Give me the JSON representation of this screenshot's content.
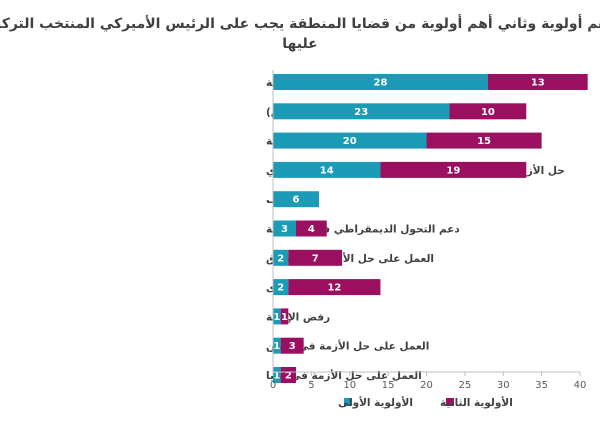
{
  "chart_data": {
    "type": "bar",
    "orientation": "horizontal",
    "stacked": true,
    "title_lines": [
      "أهم أولوية وثاني أهم أولوية من قضايا المنطقة يجب على الرئيس الأميركي المنتخب التركيز",
      "عليها"
    ],
    "categories": [
      "على الولايات المتحدة أن لا تتدخل في شؤون البلدان العربية",
      "محاربة تنظيم الدولة الإسلامية (داعش)",
      "إيجاد حل عادل للقضية الفلسطينية",
      "حل الأزمة السورية بما يتناسب مع تطلعات الشعب السوري",
      "لا أعرف",
      "دعم التحول الديمقراطي في المنطقة",
      "العمل على حل الأزمة في العراق",
      "أخرى",
      "رفض الإجابة",
      "العمل على حل الأزمة في اليمن",
      "العمل على حل الأزمة في ليبيا"
    ],
    "series": [
      {
        "name": "الأولوية الأولى",
        "color": "#1b9bb5",
        "values": [
          28,
          23,
          20,
          14,
          6,
          3,
          2,
          2,
          1,
          1,
          1
        ]
      },
      {
        "name": "الأولوية الثانية",
        "color": "#9b0f60",
        "values": [
          13,
          10,
          15,
          19,
          0,
          4,
          7,
          12,
          1,
          3,
          2
        ]
      }
    ],
    "xlim": [
      0,
      40
    ],
    "xticks": [
      "0",
      "5",
      "10",
      "15",
      "20",
      "25",
      "30",
      "35",
      "40"
    ],
    "legend_position": "bottom",
    "grid": false
  }
}
